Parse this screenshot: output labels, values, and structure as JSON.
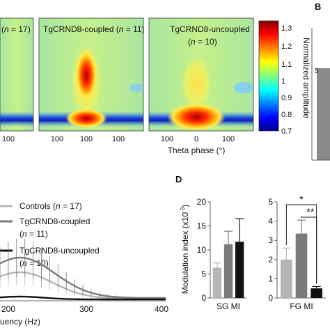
{
  "panels": {
    "B": "B",
    "D": "D"
  },
  "chart_data": [
    {
      "type": "heatmap",
      "panels": [
        {
          "label_prefix": "",
          "n_text": "n",
          "n_eq": " = 17)",
          "label_paren": "(",
          "name": ""
        },
        {
          "name": "TgCRND8-coupled",
          "label_paren": "(",
          "n_text": "n",
          "n_eq": " = 11)"
        },
        {
          "name": "TgCRND8-uncoupled",
          "label_paren": "(",
          "n_text": "n",
          "n_eq": " = 10)"
        }
      ],
      "xlabel": "Theta phase (°)",
      "xticks": [
        "100",
        "100",
        "0",
        "100",
        "100",
        "0",
        "100"
      ],
      "colorbar": {
        "label": "Normalized amplitude",
        "ticks": [
          "1.3",
          "1.2",
          "1.1",
          "1",
          "0.9",
          "0.8",
          "0.7"
        ],
        "range": [
          0.7,
          1.3
        ]
      }
    },
    {
      "type": "line",
      "xlabel": "uency (Hz)",
      "xticks": [
        "200",
        "300",
        "400"
      ],
      "series": [
        {
          "name": "Controls",
          "n_label": "(n = 17)",
          "color": "#b5b5b5"
        },
        {
          "name": "TgCRND8-coupled",
          "n_label": "(n = 11)",
          "color": "#7a7a7a"
        },
        {
          "name": "TgCRND8-uncoupled",
          "n_label": "(n = 10)",
          "color": "#111111"
        }
      ]
    },
    {
      "type": "bar",
      "ylabel": "Modulation index (x10",
      "ylabel_exp": "-3",
      "ylabel_close": ")",
      "yticks": [
        "0",
        "5",
        "10",
        "15",
        "20"
      ],
      "ylim": [
        0,
        20
      ],
      "group_label": "SG MI",
      "colors": [
        "#b5b5b5",
        "#7a7a7a",
        "#111111"
      ],
      "values": [
        6.3,
        11.2,
        11.7
      ],
      "errors": [
        1.0,
        2.7,
        4.8
      ]
    },
    {
      "type": "bar",
      "yticks": [
        "0",
        "1",
        "2",
        "3",
        "4",
        "5"
      ],
      "ylim": [
        0,
        5
      ],
      "group_label": "FG MI",
      "colors": [
        "#b5b5b5",
        "#7a7a7a",
        "#111111"
      ],
      "values": [
        2.0,
        3.35,
        0.5
      ],
      "errors": [
        0.6,
        0.7,
        0.1
      ],
      "significance": [
        "*",
        "**"
      ]
    }
  ]
}
